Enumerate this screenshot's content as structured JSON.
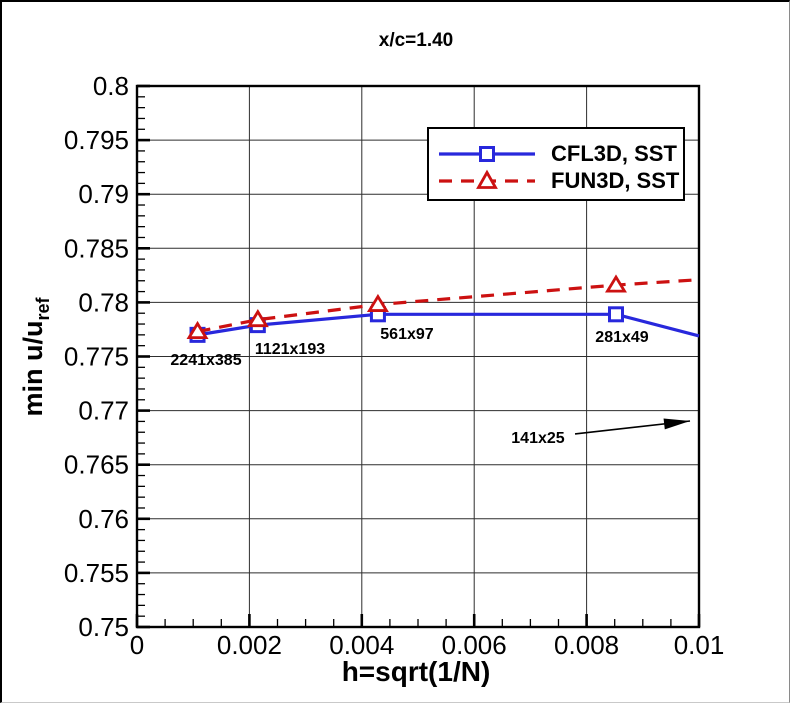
{
  "title": "x/c=1.40",
  "colors": {
    "cfl3d_blue": "#2828dc",
    "fun3d_red": "#cc1111",
    "gridline": "#2e2e2e",
    "axis": "#000000",
    "background": "#ffffff"
  },
  "chart_data": {
    "type": "line",
    "title": "x/c=1.40",
    "xlabel": "h=sqrt(1/N)",
    "ylabel": "min u/u_ref",
    "ylabel_main": "min u/u",
    "ylabel_sub": "ref",
    "xlim": [
      0,
      0.01
    ],
    "ylim": [
      0.75,
      0.8
    ],
    "grid": true,
    "legend_position": "upper right",
    "x_major_ticks": [
      0,
      0.002,
      0.004,
      0.006,
      0.008,
      0.01
    ],
    "x_tick_labels": [
      "0",
      "0.002",
      "0.004",
      "0.006",
      "0.008",
      "0.01"
    ],
    "x_minor_tick_step": 0.0005,
    "y_major_ticks": [
      0.75,
      0.755,
      0.76,
      0.765,
      0.77,
      0.775,
      0.78,
      0.785,
      0.79,
      0.795,
      0.8
    ],
    "y_tick_labels": [
      "0.75",
      "0.755",
      "0.76",
      "0.765",
      "0.77",
      "0.775",
      "0.78",
      "0.785",
      "0.79",
      "0.795",
      "0.8"
    ],
    "y_minor_tick_step": 0.001,
    "series": [
      {
        "name": "CFL3D, SST",
        "color": "#2828dc",
        "line_style": "solid",
        "marker": "square",
        "x": [
          0.001077,
          0.00215,
          0.004287,
          0.008523
        ],
        "y": [
          0.777,
          0.7779,
          0.7789,
          0.7789
        ],
        "clipped_end": {
          "x": 0.01,
          "y": 0.7769
        }
      },
      {
        "name": "FUN3D, SST",
        "color": "#cc1111",
        "line_style": "dashed",
        "marker": "triangle",
        "x": [
          0.001077,
          0.00215,
          0.004287,
          0.008523
        ],
        "y": [
          0.7773,
          0.7784,
          0.7798,
          0.7816
        ],
        "clipped_end": {
          "x": 0.01,
          "y": 0.7821
        }
      }
    ],
    "annotations": [
      {
        "text": "2241x385",
        "x": 0.001228,
        "y": 0.77477
      },
      {
        "text": "1121x193",
        "x": 0.002722,
        "y": 0.77578
      },
      {
        "text": "561x97",
        "x": 0.004804,
        "y": 0.77717
      },
      {
        "text": "281x49",
        "x": 0.00863,
        "y": 0.77689
      },
      {
        "text": "141x25",
        "x": 0.007135,
        "y": 0.76756,
        "arrow": {
          "x1": 0.007794,
          "y1": 0.76784,
          "x2": 0.00984,
          "y2": 0.76904
        }
      }
    ]
  }
}
